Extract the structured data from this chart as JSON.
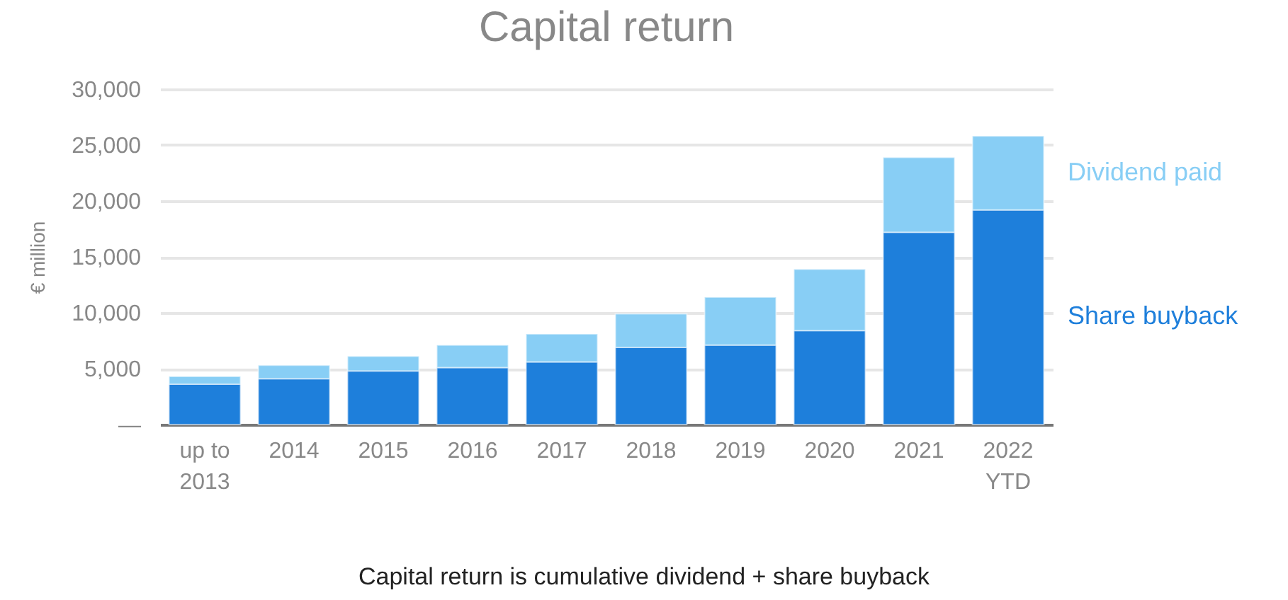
{
  "chart_data": {
    "type": "bar",
    "title": "Capital return",
    "ylabel": "€ million",
    "categories": [
      "up to 2013",
      "2014",
      "2015",
      "2016",
      "2017",
      "2018",
      "2019",
      "2020",
      "2021",
      "2022 YTD"
    ],
    "stacked": true,
    "series": [
      {
        "name": "Share buyback",
        "color": "#1e7fdb",
        "values": [
          3600,
          4100,
          4800,
          5100,
          5600,
          6900,
          7100,
          8400,
          17200,
          19200
        ]
      },
      {
        "name": "Dividend paid",
        "color": "#88cef5",
        "values": [
          700,
          1200,
          1300,
          2000,
          2500,
          3000,
          4300,
          5500,
          6700,
          6600
        ]
      }
    ],
    "ylim": [
      0,
      30000
    ],
    "yticks": [
      {
        "value": 0,
        "label": "—"
      },
      {
        "value": 5000,
        "label": "5,000"
      },
      {
        "value": 10000,
        "label": "10,000"
      },
      {
        "value": 15000,
        "label": "15,000"
      },
      {
        "value": 20000,
        "label": "20,000"
      },
      {
        "value": 25000,
        "label": "25,000"
      },
      {
        "value": 30000,
        "label": "30,000"
      }
    ],
    "grid": "y",
    "legend": "right",
    "annotations": [
      "Capital return is cumulative dividend + share buyback"
    ]
  }
}
